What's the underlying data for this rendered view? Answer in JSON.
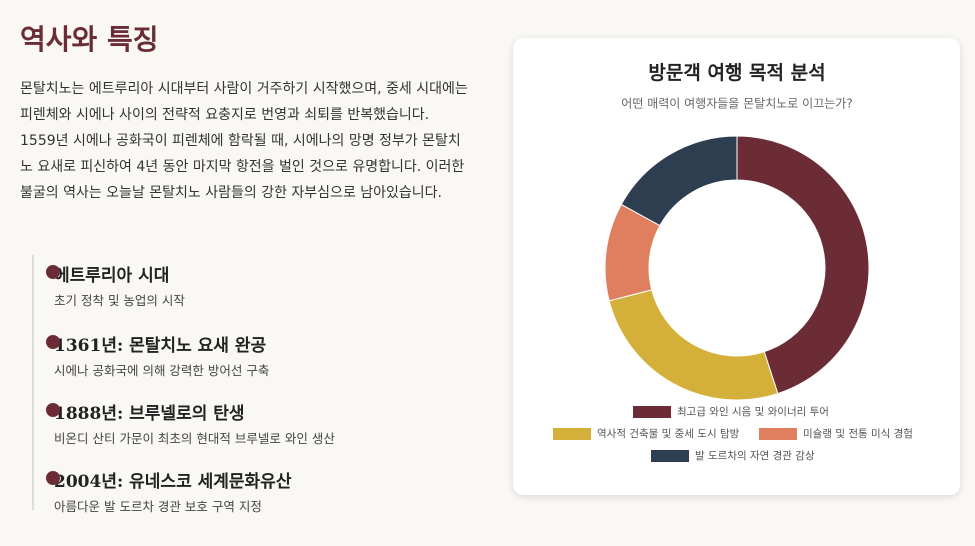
{
  "section": {
    "title": "역사와 특징",
    "paragraph": "몬탈치노는 에트루리아 시대부터 사람이 거주하기 시작했으며, 중세 시대에는 피렌체와 시에나 사이의 전략적 요충지로 번영과 쇠퇴를 반복했습니다. 1559년 시에나 공화국이 피렌체에 함락될 때, 시에나의 망명 정부가 몬탈치노 요새로 피신하여 4년 동안 마지막 항전을 벌인 것으로 유명합니다. 이러한 불굴의 역사는 오늘날 몬탈치노 사람들의 강한 자부심으로 남아있습니다.",
    "timeline": [
      {
        "title": "에트루리아 시대",
        "desc": "초기 정착 및 농업의 시작"
      },
      {
        "title": "1361년: 몬탈치노 요새 완공",
        "desc": "시에나 공화국에 의해 강력한 방어선 구축"
      },
      {
        "title": "1888년: 브루넬로의 탄생",
        "desc": "비온디 산티 가문이 최초의 현대적 브루넬로 와인 생산"
      },
      {
        "title": "2004년: 유네스코 세계문화유산",
        "desc": "아름다운 발 도르차 경관 보호 구역 지정"
      }
    ]
  },
  "chart_data": {
    "type": "doughnut",
    "title": "방문객 여행 목적 분석",
    "subtitle": "어떤 매력이 여행자들을 몬탈치노로 이끄는가?",
    "categories": [
      "최고급 와인 시음 및 와이너리 투어",
      "역사적 건축물 및 중세 도시 탐방",
      "미슐랭 및 전통 미식 경험",
      "발 도르차의 자연 경관 감상"
    ],
    "values": [
      45,
      26,
      12,
      17
    ],
    "colors": [
      "#6b2c35",
      "#d4b03a",
      "#e07f5f",
      "#2c3e50"
    ],
    "legend": "bottom"
  }
}
